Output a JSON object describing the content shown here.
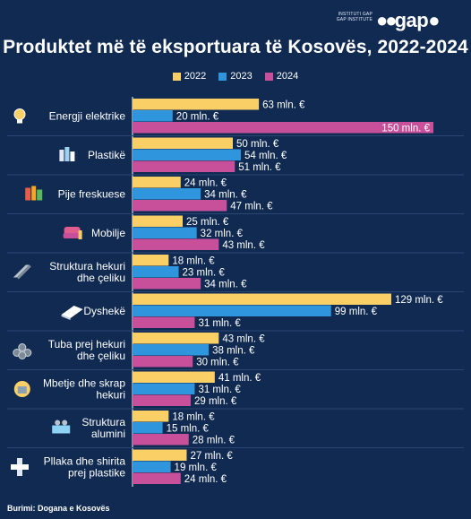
{
  "brand": {
    "institute_line1": "INSTITUTI GAP",
    "institute_line2": "GAP INSTITUTE",
    "logo_text": "gap"
  },
  "title": "Produktet më të eksportuara të Kosovës, 2022-2024",
  "source": "Burimi: Dogana e Kosovës",
  "colors": {
    "background": "#102a52",
    "series_2022": "#f9cf66",
    "series_2023": "#2f95dc",
    "series_2024": "#c8509a"
  },
  "chart_data": {
    "type": "bar",
    "orientation": "horizontal",
    "unit": "mln. €",
    "xlim": [
      0,
      150
    ],
    "grid": false,
    "legend": "top-center",
    "categories": [
      {
        "lines": [
          "Energji elektrike"
        ],
        "icon": "lightbulb-icon"
      },
      {
        "lines": [
          "Plastikë"
        ],
        "icon": "plastic-bottles-icon"
      },
      {
        "lines": [
          "Pije freskuese"
        ],
        "icon": "soft-drinks-icon"
      },
      {
        "lines": [
          "Mobilje"
        ],
        "icon": "armchair-icon"
      },
      {
        "lines": [
          "Struktura hekuri",
          "dhe çeliku"
        ],
        "icon": "steel-beam-icon"
      },
      {
        "lines": [
          "Dyshekë"
        ],
        "icon": "mattress-icon"
      },
      {
        "lines": [
          "Tuba prej hekuri",
          "dhe çeliku"
        ],
        "icon": "pipes-icon"
      },
      {
        "lines": [
          "Mbetje dhe skrap",
          "hekuri"
        ],
        "icon": "scrap-bin-icon"
      },
      {
        "lines": [
          "Struktura",
          "alumini"
        ],
        "icon": "aluminium-structure-icon"
      },
      {
        "lines": [
          "Pllaka dhe shirita",
          "prej plastike"
        ],
        "icon": "plastic-pipe-fitting-icon"
      }
    ],
    "series": [
      {
        "name": "2022",
        "values": [
          63,
          50,
          24,
          25,
          18,
          129,
          43,
          41,
          18,
          27
        ]
      },
      {
        "name": "2023",
        "values": [
          20,
          54,
          34,
          32,
          23,
          99,
          38,
          31,
          15,
          19
        ]
      },
      {
        "name": "2024",
        "values": [
          150,
          51,
          47,
          43,
          34,
          31,
          30,
          29,
          28,
          24
        ]
      }
    ],
    "value_labels": [
      [
        "63 mln. €",
        "50 mln. €",
        "24 mln. €",
        "25 mln. €",
        "18 mln. €",
        "129 mln. €",
        "43 mln. €",
        "41 mln. €",
        "18 mln. €",
        "27 mln. €"
      ],
      [
        "20 mln. €",
        "54 mln. €",
        "34 mln. €",
        "32 mln. €",
        "23 mln. €",
        "99 mln. €",
        "38 mln. €",
        "31 mln. €",
        "15 mln. €",
        "19 mln. €"
      ],
      [
        "150 mln. €",
        "51 mln. €",
        "47 mln. €",
        "43 mln. €",
        "34 mln. €",
        "31 mln. €",
        "30 mln. €",
        "29 mln. €",
        "28 mln. €",
        "24 mln. €"
      ]
    ]
  }
}
